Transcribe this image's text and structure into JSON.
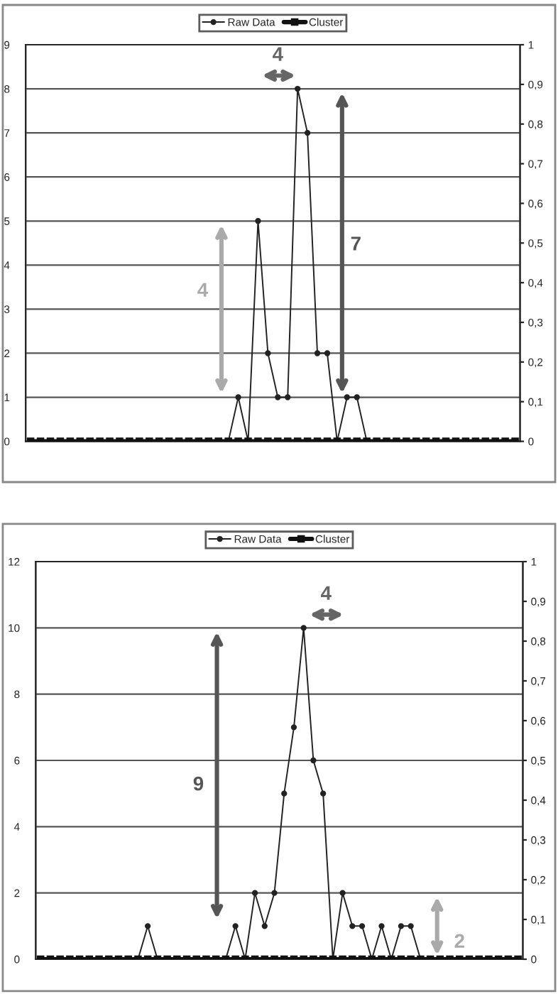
{
  "chart_data": [
    {
      "type": "line",
      "categories": [
        null,
        null,
        null,
        null,
        null,
        null,
        null,
        null,
        null,
        null,
        null,
        null,
        null,
        null,
        null,
        null,
        null,
        null,
        null,
        null,
        null,
        null,
        null,
        null,
        null,
        null,
        null,
        null,
        null,
        null,
        null,
        null,
        null,
        null,
        null,
        null,
        null,
        null,
        null,
        null,
        null,
        null,
        null,
        null,
        null,
        null,
        null,
        null,
        null,
        null
      ],
      "series": [
        {
          "name": "Raw Data",
          "color": "#222222",
          "marker": "circle",
          "values": [
            0,
            0,
            0,
            0,
            0,
            0,
            0,
            0,
            0,
            0,
            0,
            0,
            0,
            0,
            0,
            0,
            0,
            0,
            0,
            0,
            0,
            1,
            0,
            5,
            2,
            1,
            1,
            8,
            7,
            2,
            2,
            0,
            1,
            1,
            0,
            0,
            0,
            0,
            0,
            0,
            0,
            0,
            0,
            0,
            0,
            0,
            0,
            0,
            0,
            0
          ]
        },
        {
          "name": "Cluster",
          "color": "#111111",
          "marker": "square",
          "axis": "y2",
          "values": [
            0,
            0,
            0,
            0,
            0,
            0,
            0,
            0,
            0,
            0,
            0,
            0,
            0,
            0,
            0,
            0,
            0,
            0,
            0,
            0,
            0,
            0,
            0,
            0,
            0,
            0,
            0,
            0,
            0,
            0,
            0,
            0,
            0,
            0,
            0,
            0,
            0,
            0,
            0,
            0,
            0,
            0,
            0,
            0,
            0,
            0,
            0,
            0,
            0,
            0
          ]
        }
      ],
      "ylim": [
        0,
        9
      ],
      "yticks": [
        0,
        1,
        2,
        3,
        4,
        5,
        6,
        7,
        8,
        9
      ],
      "y2lim": [
        0,
        1
      ],
      "y2ticks": [
        0,
        {
          "value": 0.1,
          "label": "0,1"
        },
        {
          "value": 0.2,
          "label": "0,2"
        },
        {
          "value": 0.3,
          "label": "0,3"
        },
        {
          "value": 0.4,
          "label": "0,4"
        },
        {
          "value": 0.5,
          "label": "0,5"
        },
        {
          "value": 0.6,
          "label": "0,6"
        },
        {
          "value": 0.7,
          "label": "0,7"
        },
        {
          "value": 0.8,
          "label": "0,8"
        },
        {
          "value": 0.9,
          "label": "0,9"
        },
        1
      ],
      "grid": "y",
      "legend": "top",
      "annotations": [
        "4",
        "7",
        "4"
      ]
    },
    {
      "type": "line",
      "categories": [
        null,
        null,
        null,
        null,
        null,
        null,
        null,
        null,
        null,
        null,
        null,
        null,
        null,
        null,
        null,
        null,
        null,
        null,
        null,
        null,
        null,
        null,
        null,
        null,
        null,
        null,
        null,
        null,
        null,
        null,
        null,
        null,
        null,
        null,
        null,
        null,
        null,
        null,
        null,
        null,
        null,
        null,
        null,
        null,
        null,
        null,
        null,
        null,
        null,
        null
      ],
      "series": [
        {
          "name": "Raw Data",
          "color": "#222222",
          "marker": "circle",
          "values": [
            0,
            0,
            0,
            0,
            0,
            0,
            0,
            0,
            0,
            0,
            0,
            1,
            0,
            0,
            0,
            0,
            0,
            0,
            0,
            0,
            1,
            0,
            2,
            1,
            2,
            5,
            7,
            10,
            6,
            5,
            0,
            2,
            1,
            1,
            0,
            1,
            0,
            1,
            1,
            0,
            0,
            0,
            0,
            0,
            0,
            0,
            0,
            0,
            0,
            0
          ]
        },
        {
          "name": "Cluster",
          "color": "#111111",
          "marker": "square",
          "axis": "y2",
          "values": [
            0,
            0,
            0,
            0,
            0,
            0,
            0,
            0,
            0,
            0,
            0,
            0,
            0,
            0,
            0,
            0,
            0,
            0,
            0,
            0,
            0,
            0,
            0,
            0,
            0,
            0,
            0,
            0,
            0,
            0,
            0,
            0,
            0,
            0,
            0,
            0,
            0,
            0,
            0,
            0,
            0,
            0,
            0,
            0,
            0,
            0,
            0,
            0,
            0,
            0
          ]
        }
      ],
      "ylim": [
        0,
        12
      ],
      "yticks": [
        0,
        2,
        4,
        6,
        8,
        10,
        12
      ],
      "y2lim": [
        0,
        1
      ],
      "y2ticks": [
        0,
        {
          "value": 0.1,
          "label": "0,1"
        },
        {
          "value": 0.2,
          "label": "0,2"
        },
        {
          "value": 0.3,
          "label": "0,3"
        },
        {
          "value": 0.4,
          "label": "0,4"
        },
        {
          "value": 0.5,
          "label": "0,5"
        },
        {
          "value": 0.6,
          "label": "0,6"
        },
        {
          "value": 0.7,
          "label": "0,7"
        },
        {
          "value": 0.8,
          "label": "0,8"
        },
        {
          "value": 0.9,
          "label": "0,9"
        },
        1
      ],
      "grid": "y",
      "legend": "top",
      "annotations": [
        "4",
        "9",
        "2"
      ]
    }
  ]
}
